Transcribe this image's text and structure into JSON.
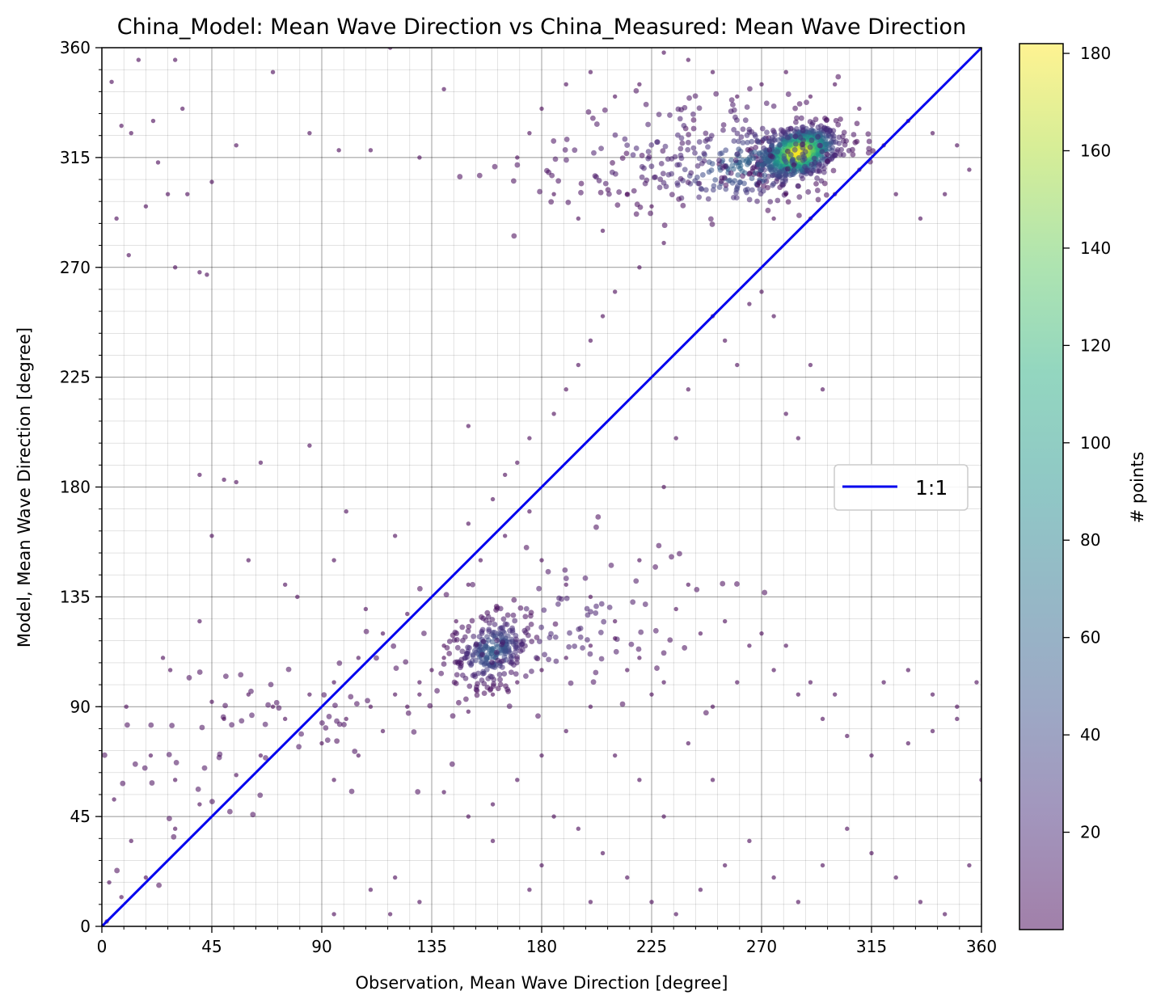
{
  "chart_data": {
    "type": "scatter",
    "title": "China_Model: Mean Wave Direction vs China_Measured: Mean Wave Direction",
    "xlabel": "Observation, Mean Wave Direction [degree]",
    "ylabel": "Model, Mean Wave Direction [degree]",
    "xlim": [
      0,
      360
    ],
    "ylim": [
      0,
      360
    ],
    "xticks": [
      "0",
      "45",
      "90",
      "135",
      "180",
      "225",
      "270",
      "315",
      "360"
    ],
    "yticks": [
      "0",
      "45",
      "90",
      "135",
      "180",
      "225",
      "270",
      "315",
      "360"
    ],
    "minor_step": 9,
    "grid": true,
    "legend": {
      "placement": "center-right",
      "entries": [
        {
          "label": "1:1",
          "color": "#0000ee"
        }
      ]
    },
    "reference_line": {
      "label": "1:1",
      "from": [
        0,
        0
      ],
      "to": [
        360,
        360
      ]
    },
    "colorbar": {
      "label": "# points",
      "colormap": "viridis",
      "alpha": 0.5,
      "range": [
        0,
        182
      ],
      "ticks": [
        "20",
        "40",
        "60",
        "80",
        "100",
        "120",
        "140",
        "160",
        "180"
      ]
    },
    "density_clusters": [
      {
        "x": 285,
        "y": 317,
        "sx": 8,
        "sy": 5,
        "peak": 182
      },
      {
        "x": 265,
        "y": 312,
        "sx": 22,
        "sy": 9,
        "peak": 60
      },
      {
        "x": 240,
        "y": 320,
        "sx": 35,
        "sy": 12,
        "peak": 22
      },
      {
        "x": 160,
        "y": 113,
        "sx": 8,
        "sy": 7,
        "peak": 55
      },
      {
        "x": 185,
        "y": 122,
        "sx": 30,
        "sy": 16,
        "peak": 18
      },
      {
        "x": 70,
        "y": 78,
        "sx": 40,
        "sy": 20,
        "peak": 6
      }
    ],
    "sample_points": [
      [
        4,
        346
      ],
      [
        8,
        328
      ],
      [
        12,
        325
      ],
      [
        15,
        355
      ],
      [
        18,
        295
      ],
      [
        21,
        330
      ],
      [
        23,
        313
      ],
      [
        27,
        300
      ],
      [
        30,
        355
      ],
      [
        33,
        335
      ],
      [
        35,
        300
      ],
      [
        6,
        290
      ],
      [
        11,
        275
      ],
      [
        30,
        270
      ],
      [
        40,
        268
      ],
      [
        43,
        267
      ],
      [
        45,
        305
      ],
      [
        55,
        320
      ],
      [
        70,
        350
      ],
      [
        85,
        325
      ],
      [
        97,
        318
      ],
      [
        110,
        318
      ],
      [
        118,
        360
      ],
      [
        130,
        315
      ],
      [
        140,
        343
      ],
      [
        150,
        205
      ],
      [
        108,
        130
      ],
      [
        40,
        185
      ],
      [
        50,
        183
      ],
      [
        65,
        190
      ],
      [
        85,
        197
      ],
      [
        60,
        150
      ],
      [
        55,
        182
      ],
      [
        100,
        170
      ],
      [
        95,
        150
      ],
      [
        120,
        160
      ],
      [
        45,
        160
      ],
      [
        80,
        135
      ],
      [
        75,
        140
      ],
      [
        40,
        125
      ],
      [
        25,
        110
      ],
      [
        28,
        105
      ],
      [
        10,
        90
      ],
      [
        20,
        70
      ],
      [
        30,
        60
      ],
      [
        5,
        52
      ],
      [
        12,
        35
      ],
      [
        18,
        20
      ],
      [
        8,
        12
      ],
      [
        3,
        18
      ],
      [
        30,
        40
      ],
      [
        40,
        50
      ],
      [
        55,
        62
      ],
      [
        65,
        70
      ],
      [
        75,
        85
      ],
      [
        85,
        95
      ],
      [
        95,
        100
      ],
      [
        105,
        110
      ],
      [
        115,
        120
      ],
      [
        125,
        128
      ],
      [
        45,
        92
      ],
      [
        50,
        85
      ],
      [
        60,
        95
      ],
      [
        70,
        90
      ],
      [
        90,
        75
      ],
      [
        100,
        85
      ],
      [
        110,
        90
      ],
      [
        120,
        95
      ],
      [
        130,
        100
      ],
      [
        140,
        110
      ],
      [
        150,
        140
      ],
      [
        155,
        150
      ],
      [
        165,
        160
      ],
      [
        175,
        170
      ],
      [
        180,
        150
      ],
      [
        190,
        140
      ],
      [
        200,
        135
      ],
      [
        210,
        125
      ],
      [
        220,
        110
      ],
      [
        230,
        100
      ],
      [
        200,
        90
      ],
      [
        190,
        80
      ],
      [
        180,
        70
      ],
      [
        170,
        60
      ],
      [
        160,
        50
      ],
      [
        185,
        45
      ],
      [
        195,
        40
      ],
      [
        205,
        30
      ],
      [
        215,
        20
      ],
      [
        225,
        10
      ],
      [
        235,
        5
      ],
      [
        245,
        15
      ],
      [
        255,
        25
      ],
      [
        265,
        35
      ],
      [
        275,
        20
      ],
      [
        285,
        10
      ],
      [
        295,
        25
      ],
      [
        305,
        40
      ],
      [
        315,
        30
      ],
      [
        325,
        20
      ],
      [
        335,
        10
      ],
      [
        345,
        5
      ],
      [
        355,
        25
      ],
      [
        360,
        60
      ],
      [
        350,
        85
      ],
      [
        340,
        95
      ],
      [
        330,
        105
      ],
      [
        320,
        100
      ],
      [
        300,
        95
      ],
      [
        290,
        100
      ],
      [
        280,
        115
      ],
      [
        270,
        120
      ],
      [
        260,
        100
      ],
      [
        250,
        90
      ],
      [
        240,
        75
      ],
      [
        250,
        60
      ],
      [
        230,
        45
      ],
      [
        220,
        60
      ],
      [
        210,
        70
      ],
      [
        220,
        150
      ],
      [
        230,
        180
      ],
      [
        235,
        200
      ],
      [
        240,
        220
      ],
      [
        250,
        250
      ],
      [
        255,
        240
      ],
      [
        260,
        230
      ],
      [
        265,
        255
      ],
      [
        270,
        260
      ],
      [
        275,
        250
      ],
      [
        280,
        210
      ],
      [
        285,
        200
      ],
      [
        290,
        230
      ],
      [
        295,
        220
      ],
      [
        275,
        290
      ],
      [
        280,
        300
      ],
      [
        290,
        290
      ],
      [
        300,
        300
      ],
      [
        310,
        310
      ],
      [
        320,
        320
      ],
      [
        330,
        330
      ],
      [
        340,
        325
      ],
      [
        350,
        320
      ],
      [
        355,
        310
      ],
      [
        345,
        300
      ],
      [
        335,
        290
      ],
      [
        325,
        300
      ],
      [
        310,
        335
      ],
      [
        300,
        345
      ],
      [
        290,
        340
      ],
      [
        280,
        350
      ],
      [
        270,
        345
      ],
      [
        260,
        340
      ],
      [
        250,
        350
      ],
      [
        240,
        355
      ],
      [
        230,
        358
      ],
      [
        220,
        345
      ],
      [
        210,
        340
      ],
      [
        200,
        350
      ],
      [
        190,
        345
      ],
      [
        180,
        335
      ],
      [
        175,
        325
      ],
      [
        170,
        315
      ],
      [
        185,
        300
      ],
      [
        195,
        290
      ],
      [
        205,
        285
      ],
      [
        215,
        300
      ],
      [
        225,
        295
      ],
      [
        230,
        280
      ],
      [
        220,
        270
      ],
      [
        210,
        260
      ],
      [
        205,
        250
      ],
      [
        200,
        240
      ],
      [
        195,
        230
      ],
      [
        190,
        220
      ],
      [
        185,
        210
      ],
      [
        175,
        200
      ],
      [
        170,
        190
      ],
      [
        165,
        185
      ],
      [
        160,
        175
      ],
      [
        150,
        165
      ],
      [
        145,
        125
      ],
      [
        140,
        115
      ],
      [
        135,
        105
      ],
      [
        130,
        95
      ],
      [
        125,
        90
      ],
      [
        115,
        80
      ],
      [
        105,
        70
      ],
      [
        95,
        60
      ],
      [
        150,
        88
      ],
      [
        160,
        95
      ],
      [
        170,
        100
      ],
      [
        180,
        105
      ],
      [
        190,
        110
      ],
      [
        200,
        115
      ],
      [
        210,
        118
      ],
      [
        215,
        105
      ],
      [
        225,
        95
      ],
      [
        235,
        130
      ],
      [
        240,
        140
      ],
      [
        245,
        120
      ],
      [
        255,
        125
      ],
      [
        265,
        115
      ],
      [
        275,
        105
      ],
      [
        285,
        95
      ],
      [
        295,
        85
      ],
      [
        305,
        78
      ],
      [
        315,
        70
      ],
      [
        330,
        75
      ],
      [
        340,
        80
      ],
      [
        350,
        90
      ],
      [
        358,
        100
      ],
      [
        2,
        2
      ],
      [
        118,
        5
      ],
      [
        95,
        5
      ],
      [
        175,
        15
      ],
      [
        180,
        25
      ],
      [
        200,
        10
      ],
      [
        160,
        35
      ],
      [
        150,
        45
      ],
      [
        140,
        55
      ],
      [
        130,
        10
      ],
      [
        120,
        20
      ],
      [
        110,
        15
      ]
    ]
  }
}
